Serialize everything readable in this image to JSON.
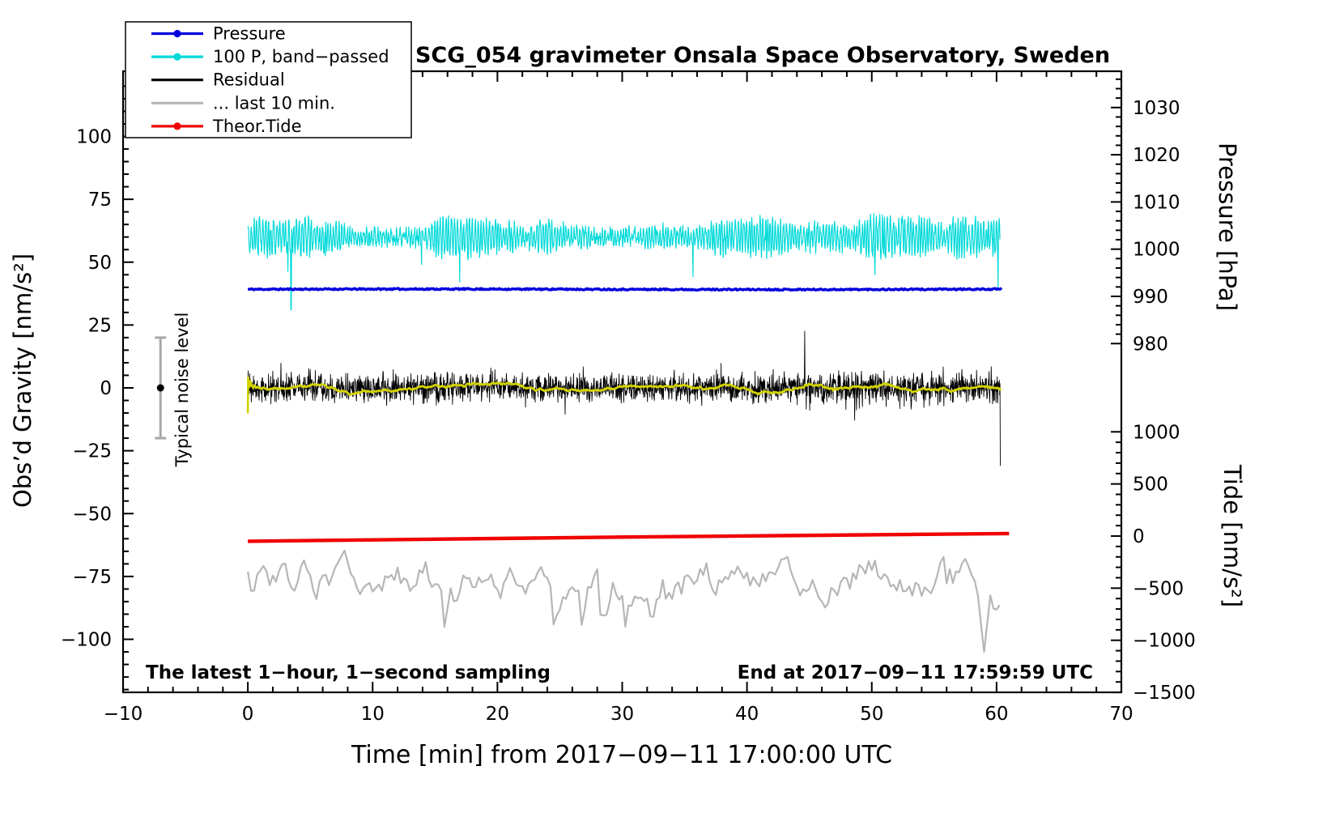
{
  "chart_data": {
    "type": "line",
    "title": "SCG_054 gravimeter Onsala Space Observatory, Sweden",
    "x_axis": {
      "label": "Time [min] from 2017−09−11 17:00:00 UTC",
      "min": -10,
      "max": 70,
      "major_ticks": [
        -10,
        0,
        10,
        20,
        30,
        40,
        50,
        60,
        70
      ],
      "minor_step": 2
    },
    "y_axis_gravity": {
      "label": "Obs’d Gravity [nm/s²]",
      "major_ticks": [
        100,
        75,
        50,
        25,
        0,
        -25,
        -50,
        -75,
        -100
      ],
      "minor_step": 5,
      "visible_range": [
        -121,
        126
      ]
    },
    "y_axis_pressure": {
      "label": "Pressure [hPa]",
      "major_ticks": [
        1030,
        1020,
        1010,
        1000,
        990,
        980
      ],
      "minor_step": 2
    },
    "y_axis_tide": {
      "label": "Tide [nm/s²]",
      "major_ticks": [
        1000,
        500,
        0,
        -500,
        -1000,
        -1500
      ],
      "minor_step": 100
    },
    "series": [
      {
        "id": "pressure",
        "label": "Pressure",
        "color": "#0000dd",
        "axis": "pressure",
        "mean_hPa": 991.5,
        "noise_hPa": 0.3,
        "x_start": 0,
        "x_end": 60.4
      },
      {
        "id": "pressure_bandpassed",
        "label": "100 P, band−passed",
        "color": "#00d9d9",
        "axis": "gravity",
        "center": 60,
        "typical_amplitude": 8,
        "extreme_low": 31,
        "extreme_low_x": 3.45,
        "x_start": 0,
        "x_end": 60.3
      },
      {
        "id": "residual",
        "label": "Residual",
        "color": "#000000",
        "axis": "gravity",
        "center": 0,
        "typical_amplitude": 8,
        "spike_amplitude": 28,
        "end_spike_value": -31,
        "x_start": 0,
        "x_end": 60.3
      },
      {
        "id": "residual_smoothed",
        "label": "Residual smoothed overlay",
        "color": "#d2d200",
        "axis": "gravity",
        "center": 0,
        "typical_amplitude": 2,
        "x_start": 0,
        "x_end": 60.3
      },
      {
        "id": "residual_last10",
        "label": "... last 10 min.",
        "color": "#b6b6b6",
        "axis": "gravity",
        "center": -75,
        "typical_amplitude": 8,
        "extreme_low": -105,
        "extreme_low_x": 59.0,
        "x_start": 0,
        "x_end": 60.4
      },
      {
        "id": "theor_tide",
        "label": "Theor.Tide",
        "color": "#f00000",
        "axis": "tide",
        "start_value": -50,
        "end_value": 24,
        "x_start": 0,
        "x_end": 61
      }
    ],
    "annotations": {
      "sampling_note": "The latest 1−hour, 1−second sampling",
      "end_time_note": "End at 2017−09−11 17:59:59 UTC",
      "noise_bar_label": "Typical noise level",
      "noise_bar": {
        "x_min": -7,
        "center_value": 0,
        "half_range": 20
      }
    }
  },
  "legend": {
    "items": [
      {
        "label": "Pressure",
        "color": "#0000dd",
        "marker": true
      },
      {
        "label": "100 P, band−passed",
        "color": "#00d9d9",
        "marker": true
      },
      {
        "label": "Residual",
        "color": "#000000",
        "marker": false
      },
      {
        "label": "... last 10 min.",
        "color": "#b6b6b6",
        "marker": false
      },
      {
        "label": "Theor.Tide",
        "color": "#f00000",
        "marker": true
      }
    ]
  },
  "colors": {
    "frame": "#000000",
    "background": "#ffffff",
    "noise_bar": "#a8a8a8"
  }
}
